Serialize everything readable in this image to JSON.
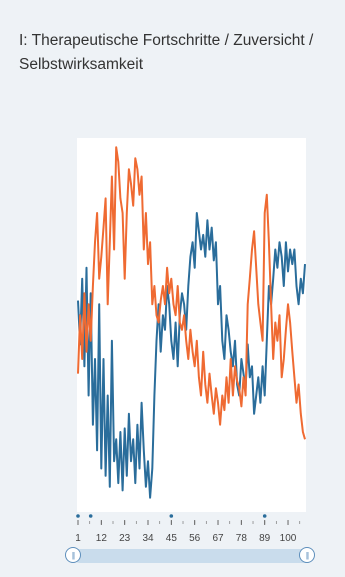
{
  "title": "I: Therapeutische Fortschritte / Zuversicht / Selbstwirksamkeit",
  "colors": {
    "series_blue": "#2a6d9b",
    "series_orange": "#ef6a32",
    "dots": "#2a6d9b",
    "slider": "#5e8fbc"
  },
  "slider": {
    "handle_icon": "pause-bars-icon",
    "start": 1,
    "end": 108
  },
  "chart_data": {
    "type": "line",
    "xlim": [
      1,
      108
    ],
    "ylim": [
      0,
      1
    ],
    "x_ticks": [
      1,
      12,
      23,
      34,
      45,
      56,
      67,
      78,
      89,
      100
    ],
    "grid": false,
    "legend": "none",
    "series": [
      {
        "color": "#2a6d9b",
        "values": [
          0.56,
          0.44,
          0.62,
          0.38,
          0.65,
          0.3,
          0.58,
          0.22,
          0.4,
          0.15,
          0.55,
          0.1,
          0.4,
          0.08,
          0.3,
          0.05,
          0.45,
          0.12,
          0.18,
          0.06,
          0.2,
          0.04,
          0.21,
          0.08,
          0.25,
          0.12,
          0.18,
          0.06,
          0.22,
          0.1,
          0.28,
          0.15,
          0.05,
          0.12,
          0.02,
          0.1,
          0.3,
          0.45,
          0.55,
          0.42,
          0.52,
          0.48,
          0.6,
          0.55,
          0.45,
          0.4,
          0.5,
          0.38,
          0.52,
          0.58,
          0.55,
          0.48,
          0.6,
          0.68,
          0.72,
          0.65,
          0.8,
          0.75,
          0.7,
          0.74,
          0.68,
          0.78,
          0.7,
          0.76,
          0.67,
          0.72,
          0.55,
          0.6,
          0.45,
          0.4,
          0.52,
          0.48,
          0.42,
          0.38,
          0.45,
          0.33,
          0.3,
          0.4,
          0.36,
          0.32,
          0.44,
          0.35,
          0.38,
          0.25,
          0.3,
          0.35,
          0.28,
          0.38,
          0.3,
          0.45,
          0.6,
          0.55,
          0.62,
          0.7,
          0.65,
          0.72,
          0.68,
          0.6,
          0.72,
          0.64,
          0.7,
          0.66,
          0.7,
          0.6,
          0.55,
          0.62,
          0.58,
          0.66
        ]
      },
      {
        "color": "#ef6a32",
        "values": [
          0.36,
          0.52,
          0.4,
          0.58,
          0.42,
          0.55,
          0.45,
          0.6,
          0.72,
          0.8,
          0.62,
          0.68,
          0.76,
          0.84,
          0.55,
          0.72,
          0.9,
          0.7,
          0.98,
          0.94,
          0.84,
          0.8,
          0.62,
          0.8,
          0.92,
          0.88,
          0.82,
          0.95,
          0.92,
          0.85,
          0.9,
          0.7,
          0.8,
          0.66,
          0.72,
          0.55,
          0.6,
          0.52,
          0.5,
          0.56,
          0.6,
          0.55,
          0.65,
          0.58,
          0.62,
          0.55,
          0.52,
          0.6,
          0.5,
          0.48,
          0.52,
          0.45,
          0.4,
          0.48,
          0.42,
          0.38,
          0.45,
          0.35,
          0.3,
          0.42,
          0.33,
          0.28,
          0.36,
          0.3,
          0.25,
          0.32,
          0.28,
          0.22,
          0.3,
          0.26,
          0.35,
          0.28,
          0.4,
          0.3,
          0.38,
          0.34,
          0.32,
          0.27,
          0.35,
          0.3,
          0.55,
          0.62,
          0.7,
          0.75,
          0.65,
          0.55,
          0.5,
          0.45,
          0.8,
          0.85,
          0.72,
          0.55,
          0.4,
          0.5,
          0.45,
          0.52,
          0.35,
          0.4,
          0.48,
          0.55,
          0.5,
          0.42,
          0.35,
          0.28,
          0.33,
          0.25,
          0.2,
          0.18
        ]
      }
    ],
    "marker_x": [
      1,
      7,
      45,
      89
    ]
  }
}
